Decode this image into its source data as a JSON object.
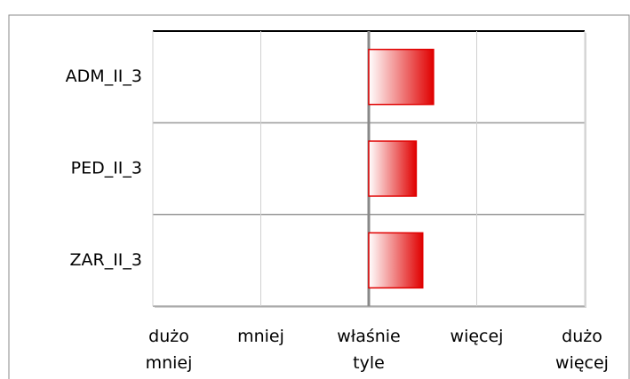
{
  "chart_data": {
    "type": "bar",
    "orientation": "horizontal",
    "categories": [
      "ADM_II_3",
      "PED_II_3",
      "ZAR_II_3"
    ],
    "values": [
      0.6,
      0.44,
      0.5
    ],
    "color": "#e00000",
    "xlim": [
      -2,
      2
    ],
    "xticks": [
      {
        "value": -2,
        "label": "dużo mniej"
      },
      {
        "value": -1,
        "label": "mniej"
      },
      {
        "value": 0,
        "label": "właśnie tyle"
      },
      {
        "value": 1,
        "label": "więcej"
      },
      {
        "value": 2,
        "label": "dużo więcej"
      }
    ],
    "grid": true
  }
}
